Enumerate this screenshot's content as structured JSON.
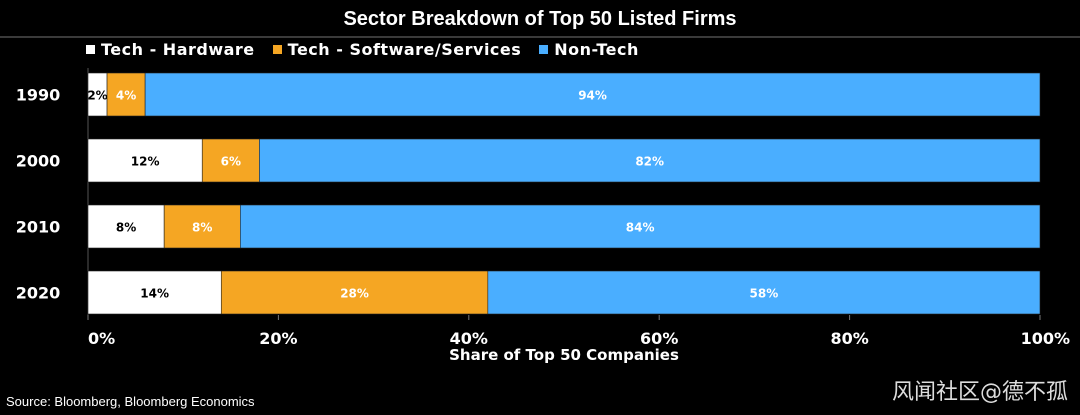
{
  "source_note": "Source: Bloomberg, Bloomberg Economics",
  "watermark": "风闻社区@德不孤",
  "chart_data": {
    "type": "bar",
    "orientation": "horizontal",
    "stacked": true,
    "title": "Sector Breakdown of Top 50 Listed Firms",
    "xlabel": "Share of Top 50 Companies",
    "ylabel": "",
    "xlim": [
      0,
      100
    ],
    "x_ticks": [
      "0%",
      "20%",
      "40%",
      "60%",
      "80%",
      "100%"
    ],
    "x_tick_values": [
      0,
      20,
      40,
      60,
      80,
      100
    ],
    "categories": [
      "1990",
      "2000",
      "2010",
      "2020"
    ],
    "series": [
      {
        "name": "Tech - Hardware",
        "color": "#ffffff",
        "label_color": "#000000",
        "values": [
          2,
          12,
          8,
          14
        ],
        "labels": [
          "2%",
          "12%",
          "8%",
          "14%"
        ]
      },
      {
        "name": "Tech - Software/Services",
        "color": "#f5a623",
        "label_color": "#ffffff",
        "values": [
          4,
          6,
          8,
          28
        ],
        "labels": [
          "4%",
          "6%",
          "8%",
          "28%"
        ]
      },
      {
        "name": "Non-Tech",
        "color": "#4aaeff",
        "label_color": "#ffffff",
        "values": [
          94,
          82,
          84,
          58
        ],
        "labels": [
          "94%",
          "82%",
          "84%",
          "58%"
        ]
      }
    ],
    "legend_position": "top-left",
    "grid": false
  }
}
